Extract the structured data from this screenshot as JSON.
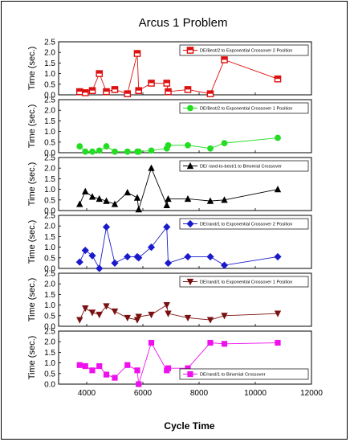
{
  "chart_data": {
    "type": "line",
    "title": "Arcus 1 Problem",
    "xlabel": "Cycle Time",
    "ylabel": "Time (sec.)",
    "xlim": [
      3000,
      12000
    ],
    "x_ticks": [
      4000,
      6000,
      8000,
      10000,
      12000
    ],
    "x": [
      3750,
      3950,
      4200,
      4450,
      4700,
      5000,
      5450,
      5800,
      5850,
      6300,
      6850,
      6900,
      7600,
      8400,
      8900,
      10800
    ],
    "panels": [
      {
        "name": "DE/Best/2  to Exponential  Crossover 2 Position",
        "color": "#dd1111",
        "marker": "square-hollow",
        "ylim": [
          0,
          2.5
        ],
        "y_ticks": [
          0.0,
          0.5,
          1.0,
          1.5,
          2.0,
          2.5
        ],
        "legend_position": "top-right",
        "values": [
          0.15,
          0.1,
          0.2,
          1.0,
          0.15,
          0.25,
          0.05,
          1.95,
          0.2,
          0.55,
          0.55,
          0.15,
          0.25,
          0.05,
          1.65,
          0.75
        ]
      },
      {
        "name": "DE/Best/2 to Exponential Crossover 1 Position",
        "color": "#22dd22",
        "marker": "circle",
        "ylim": [
          0,
          2.5
        ],
        "y_ticks": [
          0.0,
          0.5,
          1.0,
          1.5,
          2.0,
          2.5
        ],
        "legend_position": "top-right",
        "values": [
          0.3,
          0.05,
          0.05,
          0.1,
          0.3,
          0.05,
          0.05,
          0.05,
          0.05,
          0.1,
          0.2,
          0.35,
          0.35,
          0.2,
          0.45,
          0.7
        ]
      },
      {
        "name": "DE/ rand-to-best/1 to Binomial Crossover",
        "color": "#000000",
        "marker": "triangle",
        "ylim": [
          0,
          2.5
        ],
        "y_ticks": [
          0.0,
          0.5,
          1.0,
          1.5,
          2.0,
          2.5
        ],
        "legend_position": "top-right",
        "values": [
          0.3,
          0.9,
          0.65,
          0.55,
          0.45,
          0.3,
          0.85,
          0.6,
          0.05,
          2.0,
          0.25,
          0.55,
          0.55,
          0.45,
          0.5,
          1.0
        ]
      },
      {
        "name": "DE/rand/1  to Exponential Crossover 2 Position",
        "color": "#1a1acc",
        "marker": "diamond",
        "ylim": [
          0,
          2.5
        ],
        "y_ticks": [
          0.0,
          0.5,
          1.0,
          1.5,
          2.0,
          2.5
        ],
        "legend_position": "top-right",
        "values": [
          0.3,
          0.85,
          0.6,
          0.0,
          1.95,
          0.25,
          0.55,
          0.55,
          0.5,
          1.0,
          1.95,
          0.25,
          0.55,
          0.55,
          0.15,
          0.55
        ]
      },
      {
        "name": "DE/rand/1  to Exponential Crossover 1 Position",
        "color": "#7a1010",
        "marker": "triangle-down",
        "ylim": [
          0,
          2.5
        ],
        "y_ticks": [
          0.0,
          0.5,
          1.0,
          1.5,
          2.0,
          2.5
        ],
        "legend_position": "top-right",
        "values": [
          0.3,
          0.85,
          0.65,
          0.55,
          0.95,
          0.7,
          0.4,
          0.3,
          0.45,
          0.55,
          1.0,
          0.6,
          0.4,
          0.3,
          0.5,
          0.6
        ]
      },
      {
        "name": "DE/rand/1  to Binomial Crossover",
        "color": "#ee11ee",
        "marker": "square",
        "ylim": [
          0,
          2.5
        ],
        "y_ticks": [
          0.0,
          0.5,
          1.0,
          1.5,
          2.0,
          2.5
        ],
        "legend_position": "bottom-right",
        "values": [
          0.9,
          0.85,
          0.65,
          0.85,
          0.45,
          0.3,
          0.9,
          0.65,
          0.0,
          1.95,
          0.65,
          0.75,
          0.75,
          1.95,
          1.9,
          1.95
        ]
      }
    ]
  }
}
